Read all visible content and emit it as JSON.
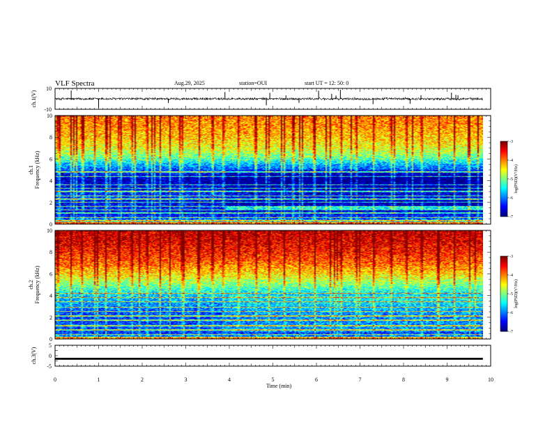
{
  "header": {
    "title": "VLF Spectra",
    "date": "Aug.29, 2025",
    "station": "station=OUI",
    "start": "start  UT =   12: 50: 0"
  },
  "chart_data": [
    {
      "type": "line",
      "panel": "ch1-waveform",
      "ylabel": "ch.1(V)",
      "ylim": [
        -10,
        10
      ],
      "yticks": [
        "10",
        "-10"
      ],
      "xlim": [
        0,
        10
      ],
      "baseline": 0,
      "noise_amplitude": 1.0,
      "spikes_min": [
        0.37,
        1.0,
        2.6,
        3.9,
        4.85,
        4.93,
        5.3,
        5.6,
        6.05,
        6.35,
        6.45,
        6.55,
        7.3,
        8.15,
        8.4,
        9.1,
        9.2,
        9.25
      ]
    },
    {
      "type": "heatmap",
      "panel": "ch1-spectrogram",
      "ylabel_line1": "ch.1",
      "ylabel_line2": "Frequency (kHz)",
      "ylim": [
        0,
        10
      ],
      "yticks": [
        "0",
        "2",
        "4",
        "6",
        "8",
        "10"
      ],
      "xlim": [
        0,
        9.82
      ],
      "log_psd_range": [
        -7,
        -3
      ],
      "background_profile": [
        {
          "f": 0.0,
          "v": -5.4
        },
        {
          "f": 0.5,
          "v": -6.2
        },
        {
          "f": 1.0,
          "v": -6.7
        },
        {
          "f": 1.5,
          "v": -6.4
        },
        {
          "f": 2.0,
          "v": -6.6
        },
        {
          "f": 2.5,
          "v": -6.3
        },
        {
          "f": 3.0,
          "v": -6.5
        },
        {
          "f": 3.5,
          "v": -6.6
        },
        {
          "f": 4.0,
          "v": -6.8
        },
        {
          "f": 4.5,
          "v": -6.6
        },
        {
          "f": 5.0,
          "v": -6.2
        },
        {
          "f": 5.5,
          "v": -5.8
        },
        {
          "f": 6.0,
          "v": -5.2
        },
        {
          "f": 6.5,
          "v": -4.9
        },
        {
          "f": 7.0,
          "v": -4.6
        },
        {
          "f": 8.0,
          "v": -4.3
        },
        {
          "f": 9.0,
          "v": -4.1
        },
        {
          "f": 10.0,
          "v": -4.0
        }
      ],
      "lines_khz": [
        0.3,
        0.6,
        1.0,
        1.3,
        1.6,
        2.0,
        2.3,
        2.6,
        3.0,
        3.3,
        3.6,
        4.4,
        4.8
      ],
      "spheric_times_min": [
        0.05,
        0.35,
        0.6,
        0.9,
        1.15,
        1.45,
        1.75,
        2.1,
        2.4,
        2.62,
        2.9,
        3.3,
        3.6,
        3.85,
        4.2,
        4.6,
        4.9,
        5.25,
        5.6,
        5.95,
        6.3,
        6.55,
        6.9,
        7.3,
        7.7,
        8.05,
        8.4,
        8.8,
        9.15,
        9.5
      ]
    },
    {
      "type": "heatmap",
      "panel": "ch2-spectrogram",
      "ylabel_line1": "ch.2",
      "ylabel_line2": "Frequency (kHz)",
      "ylim": [
        0,
        10
      ],
      "yticks": [
        "0",
        "2",
        "4",
        "6",
        "8",
        "10"
      ],
      "xlim": [
        0,
        9.82
      ],
      "log_psd_range": [
        -7,
        -3
      ],
      "background_profile": [
        {
          "f": 0.0,
          "v": -5.6
        },
        {
          "f": 0.5,
          "v": -6.3
        },
        {
          "f": 1.0,
          "v": -6.2
        },
        {
          "f": 2.0,
          "v": -6.3
        },
        {
          "f": 3.0,
          "v": -6.0
        },
        {
          "f": 4.0,
          "v": -5.7
        },
        {
          "f": 5.0,
          "v": -5.0
        },
        {
          "f": 6.0,
          "v": -4.4
        },
        {
          "f": 7.0,
          "v": -3.9
        },
        {
          "f": 8.0,
          "v": -3.6
        },
        {
          "f": 9.0,
          "v": -3.4
        },
        {
          "f": 10.0,
          "v": -3.3
        }
      ],
      "lines_khz": [
        0.4,
        0.8,
        1.2,
        1.7,
        2.1,
        2.5,
        2.9,
        3.4,
        3.8,
        4.2
      ],
      "spheric_times_min": [
        0.05,
        0.35,
        0.6,
        0.9,
        1.15,
        1.45,
        1.75,
        2.1,
        2.4,
        2.62,
        2.9,
        3.3,
        3.6,
        3.85,
        4.2,
        4.6,
        4.9,
        5.25,
        5.6,
        5.95,
        6.3,
        6.55,
        6.9,
        7.3,
        7.7,
        8.05,
        8.4,
        8.8,
        9.15,
        9.5
      ]
    },
    {
      "type": "line",
      "panel": "ch3-waveform",
      "ylabel": "ch.3(V)",
      "ylim": [
        -5,
        5
      ],
      "yticks": [
        "5",
        "0",
        "-5"
      ],
      "xlim": [
        0,
        10
      ],
      "baseline": -1.5,
      "band_width": 0.9
    }
  ],
  "x_axis": {
    "label": "Time (min)",
    "ticks": [
      "0",
      "1",
      "2",
      "3",
      "4",
      "5",
      "6",
      "7",
      "8",
      "9",
      "10"
    ]
  },
  "colorbar": {
    "label": "log(PSD)(V²/Hz)",
    "ticks": [
      "-3",
      "-4",
      "-5",
      "-6",
      "-7"
    ],
    "range": [
      -7,
      -3
    ]
  }
}
